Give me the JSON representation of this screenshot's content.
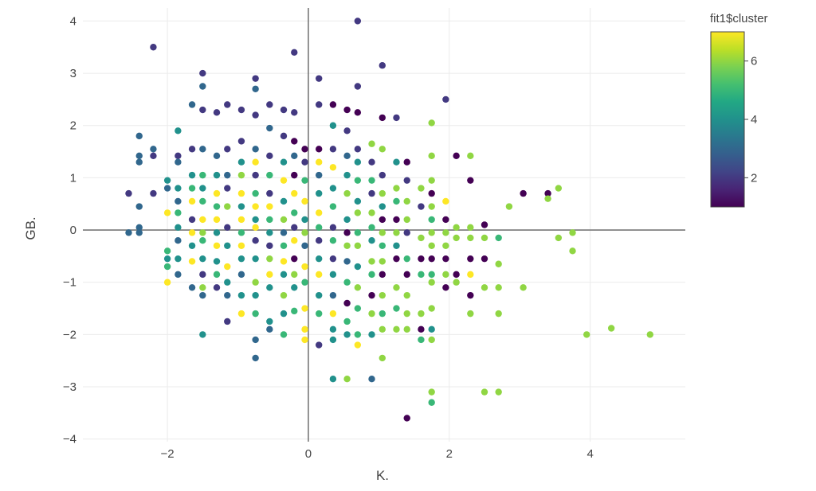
{
  "chart_data": {
    "type": "scatter",
    "xlabel": "K.",
    "ylabel": "GB.",
    "xlim": [
      -3.2,
      5.35
    ],
    "ylim": [
      -4.05,
      4.25
    ],
    "x_ticks": [
      -2,
      0,
      2,
      4
    ],
    "x_tick_labels": [
      "−2",
      "0",
      "2",
      "4"
    ],
    "y_ticks": [
      -4,
      -3,
      -2,
      -1,
      0,
      1,
      2,
      3,
      4
    ],
    "y_tick_labels": [
      "−4",
      "−3",
      "−2",
      "−1",
      "0",
      "1",
      "2",
      "3",
      "4"
    ],
    "grid": true,
    "zero_lines": true,
    "color_variable": "fit1$cluster",
    "colorscale": "viridis",
    "colorbar": {
      "title": "fit1$cluster",
      "range": [
        1,
        7
      ],
      "ticks": [
        2,
        4,
        6
      ],
      "tick_labels": [
        "2",
        "4",
        "6"
      ],
      "placement": "right"
    },
    "points": [
      [
        -2.55,
        0.7,
        2
      ],
      [
        -2.55,
        -0.05,
        3
      ],
      [
        -2.4,
        1.8,
        3
      ],
      [
        -2.4,
        1.42,
        3
      ],
      [
        -2.4,
        1.3,
        3
      ],
      [
        -2.4,
        0.45,
        3
      ],
      [
        -2.4,
        0.05,
        3
      ],
      [
        -2.4,
        -0.05,
        3
      ],
      [
        -2.2,
        3.5,
        2
      ],
      [
        -2.2,
        1.55,
        3
      ],
      [
        -2.2,
        1.42,
        2
      ],
      [
        -2.2,
        0.7,
        2
      ],
      [
        -2.0,
        0.95,
        4
      ],
      [
        -2.0,
        0.8,
        3
      ],
      [
        -2.0,
        0.33,
        7
      ],
      [
        -2.0,
        -0.4,
        5
      ],
      [
        -2.0,
        -0.55,
        4
      ],
      [
        -2.0,
        -0.7,
        5
      ],
      [
        -2.0,
        -1.0,
        7
      ],
      [
        -1.85,
        1.9,
        4
      ],
      [
        -1.85,
        1.42,
        2
      ],
      [
        -1.85,
        1.3,
        3
      ],
      [
        -1.85,
        0.8,
        4
      ],
      [
        -1.85,
        0.55,
        3
      ],
      [
        -1.85,
        0.33,
        5
      ],
      [
        -1.85,
        0.05,
        4
      ],
      [
        -1.85,
        -0.2,
        3
      ],
      [
        -1.85,
        -0.55,
        4
      ],
      [
        -1.85,
        -0.85,
        3
      ],
      [
        -1.65,
        2.4,
        3
      ],
      [
        -1.65,
        1.55,
        2
      ],
      [
        -1.65,
        1.05,
        4
      ],
      [
        -1.65,
        0.8,
        5
      ],
      [
        -1.65,
        0.55,
        7
      ],
      [
        -1.65,
        0.2,
        2
      ],
      [
        -1.65,
        -0.05,
        7
      ],
      [
        -1.65,
        -0.3,
        4
      ],
      [
        -1.65,
        -0.6,
        7
      ],
      [
        -1.65,
        -1.1,
        3
      ],
      [
        -1.5,
        3.0,
        2
      ],
      [
        -1.5,
        2.75,
        3
      ],
      [
        -1.5,
        2.3,
        2
      ],
      [
        -1.5,
        1.55,
        3
      ],
      [
        -1.5,
        1.05,
        5
      ],
      [
        -1.5,
        0.8,
        4
      ],
      [
        -1.5,
        0.55,
        5
      ],
      [
        -1.5,
        0.2,
        7
      ],
      [
        -1.5,
        -0.05,
        6
      ],
      [
        -1.5,
        -0.2,
        5
      ],
      [
        -1.5,
        -0.55,
        4
      ],
      [
        -1.5,
        -0.85,
        2
      ],
      [
        -1.5,
        -1.1,
        6
      ],
      [
        -1.5,
        -1.25,
        3
      ],
      [
        -1.5,
        -2.0,
        4
      ],
      [
        -1.3,
        2.25,
        2
      ],
      [
        -1.3,
        1.42,
        3
      ],
      [
        -1.3,
        1.05,
        4
      ],
      [
        -1.3,
        0.7,
        7
      ],
      [
        -1.3,
        0.45,
        5
      ],
      [
        -1.3,
        0.2,
        7
      ],
      [
        -1.3,
        -0.05,
        4
      ],
      [
        -1.3,
        -0.3,
        7
      ],
      [
        -1.3,
        -0.6,
        4
      ],
      [
        -1.3,
        -0.85,
        5
      ],
      [
        -1.3,
        -1.1,
        2
      ],
      [
        -1.15,
        2.4,
        2
      ],
      [
        -1.15,
        1.55,
        2
      ],
      [
        -1.15,
        1.05,
        3
      ],
      [
        -1.15,
        0.8,
        2
      ],
      [
        -1.15,
        0.45,
        6
      ],
      [
        -1.15,
        0.05,
        2
      ],
      [
        -1.15,
        -0.3,
        4
      ],
      [
        -1.15,
        -0.7,
        7
      ],
      [
        -1.15,
        -1.0,
        4
      ],
      [
        -1.15,
        -1.25,
        3
      ],
      [
        -1.15,
        -1.75,
        2
      ],
      [
        -0.95,
        2.3,
        2
      ],
      [
        -0.95,
        1.7,
        2
      ],
      [
        -0.95,
        1.3,
        4
      ],
      [
        -0.95,
        1.05,
        6
      ],
      [
        -0.95,
        0.7,
        7
      ],
      [
        -0.95,
        0.45,
        4
      ],
      [
        -0.95,
        0.2,
        7
      ],
      [
        -0.95,
        -0.05,
        5
      ],
      [
        -0.95,
        -0.3,
        7
      ],
      [
        -0.95,
        -0.55,
        4
      ],
      [
        -0.95,
        -0.85,
        3
      ],
      [
        -0.95,
        -1.25,
        4
      ],
      [
        -0.95,
        -1.6,
        7
      ],
      [
        -0.75,
        2.9,
        2
      ],
      [
        -0.75,
        2.7,
        3
      ],
      [
        -0.75,
        2.2,
        2
      ],
      [
        -0.75,
        1.55,
        3
      ],
      [
        -0.75,
        1.3,
        7
      ],
      [
        -0.75,
        1.05,
        2
      ],
      [
        -0.75,
        0.7,
        5
      ],
      [
        -0.75,
        0.45,
        7
      ],
      [
        -0.75,
        0.2,
        4
      ],
      [
        -0.75,
        0.05,
        7
      ],
      [
        -0.75,
        -0.2,
        2
      ],
      [
        -0.75,
        -0.55,
        4
      ],
      [
        -0.75,
        -1.0,
        6
      ],
      [
        -0.75,
        -1.25,
        4
      ],
      [
        -0.75,
        -1.6,
        5
      ],
      [
        -0.75,
        -2.1,
        3
      ],
      [
        -0.75,
        -2.45,
        3
      ],
      [
        -0.55,
        2.4,
        2
      ],
      [
        -0.55,
        1.95,
        3
      ],
      [
        -0.55,
        1.42,
        2
      ],
      [
        -0.55,
        1.05,
        5
      ],
      [
        -0.55,
        0.7,
        2
      ],
      [
        -0.55,
        0.45,
        7
      ],
      [
        -0.55,
        0.2,
        5
      ],
      [
        -0.55,
        -0.05,
        4
      ],
      [
        -0.55,
        -0.3,
        2
      ],
      [
        -0.55,
        -0.55,
        6
      ],
      [
        -0.55,
        -0.85,
        7
      ],
      [
        -0.55,
        -1.1,
        4
      ],
      [
        -0.55,
        -1.75,
        4
      ],
      [
        -0.55,
        -1.9,
        3
      ],
      [
        -0.35,
        2.3,
        2
      ],
      [
        -0.35,
        1.8,
        2
      ],
      [
        -0.35,
        1.3,
        4
      ],
      [
        -0.35,
        0.95,
        7
      ],
      [
        -0.35,
        0.55,
        4
      ],
      [
        -0.35,
        0.2,
        6
      ],
      [
        -0.35,
        -0.05,
        3
      ],
      [
        -0.35,
        -0.3,
        5
      ],
      [
        -0.35,
        -0.6,
        7
      ],
      [
        -0.35,
        -0.85,
        4
      ],
      [
        -0.35,
        -1.25,
        6
      ],
      [
        -0.35,
        -1.6,
        4
      ],
      [
        -0.35,
        -2.0,
        5
      ],
      [
        -0.2,
        2.25,
        2
      ],
      [
        -0.2,
        1.7,
        1
      ],
      [
        -0.2,
        1.42,
        3
      ],
      [
        -0.2,
        1.05,
        1
      ],
      [
        -0.2,
        0.7,
        7
      ],
      [
        -0.2,
        0.33,
        5
      ],
      [
        -0.2,
        0.05,
        2
      ],
      [
        -0.2,
        -0.2,
        7
      ],
      [
        -0.2,
        -0.55,
        1
      ],
      [
        -0.2,
        -0.85,
        6
      ],
      [
        -0.2,
        -1.1,
        4
      ],
      [
        -0.2,
        -1.55,
        5
      ],
      [
        -0.2,
        3.4,
        2
      ],
      [
        -0.05,
        1.55,
        1
      ],
      [
        -0.05,
        1.3,
        2
      ],
      [
        -0.05,
        0.95,
        5
      ],
      [
        -0.05,
        0.55,
        7
      ],
      [
        -0.05,
        0.2,
        4
      ],
      [
        -0.05,
        -0.05,
        6
      ],
      [
        -0.05,
        -0.3,
        3
      ],
      [
        -0.05,
        -0.7,
        7
      ],
      [
        -0.05,
        -1.0,
        5
      ],
      [
        -0.05,
        -1.5,
        7
      ],
      [
        -0.05,
        -1.9,
        7
      ],
      [
        -0.05,
        -2.1,
        7
      ],
      [
        0.15,
        2.9,
        2
      ],
      [
        0.15,
        2.4,
        2
      ],
      [
        0.15,
        1.55,
        1
      ],
      [
        0.15,
        1.3,
        7
      ],
      [
        0.15,
        1.05,
        3
      ],
      [
        0.15,
        0.7,
        4
      ],
      [
        0.15,
        0.33,
        7
      ],
      [
        0.15,
        0.05,
        5
      ],
      [
        0.15,
        -0.2,
        2
      ],
      [
        0.15,
        -0.55,
        4
      ],
      [
        0.15,
        -0.85,
        7
      ],
      [
        0.15,
        -1.25,
        4
      ],
      [
        0.15,
        -1.6,
        5
      ],
      [
        0.15,
        -2.2,
        2
      ],
      [
        0.35,
        2.4,
        1
      ],
      [
        0.35,
        2.0,
        4
      ],
      [
        0.35,
        1.55,
        2
      ],
      [
        0.35,
        1.2,
        7
      ],
      [
        0.35,
        0.8,
        4
      ],
      [
        0.35,
        0.45,
        5
      ],
      [
        0.35,
        0.05,
        2
      ],
      [
        0.35,
        -0.2,
        5
      ],
      [
        0.35,
        -0.55,
        2
      ],
      [
        0.35,
        -0.85,
        4
      ],
      [
        0.35,
        -1.25,
        3
      ],
      [
        0.35,
        -1.6,
        7
      ],
      [
        0.35,
        -1.9,
        4
      ],
      [
        0.35,
        -2.1,
        4
      ],
      [
        0.35,
        -2.85,
        4
      ],
      [
        0.55,
        2.3,
        1
      ],
      [
        0.55,
        1.9,
        2
      ],
      [
        0.55,
        1.42,
        3
      ],
      [
        0.55,
        1.05,
        4
      ],
      [
        0.55,
        0.7,
        6
      ],
      [
        0.55,
        0.2,
        4
      ],
      [
        0.55,
        -0.05,
        1
      ],
      [
        0.55,
        -0.3,
        6
      ],
      [
        0.55,
        -0.6,
        3
      ],
      [
        0.55,
        -1.0,
        5
      ],
      [
        0.55,
        -1.4,
        1
      ],
      [
        0.55,
        -1.75,
        5
      ],
      [
        0.55,
        -2.0,
        4
      ],
      [
        0.55,
        -2.85,
        6
      ],
      [
        0.7,
        4.0,
        2
      ],
      [
        0.7,
        2.75,
        2
      ],
      [
        0.7,
        2.25,
        1
      ],
      [
        0.7,
        1.55,
        2
      ],
      [
        0.7,
        1.3,
        4
      ],
      [
        0.7,
        0.95,
        5
      ],
      [
        0.7,
        0.55,
        4
      ],
      [
        0.7,
        0.33,
        6
      ],
      [
        0.7,
        -0.05,
        5
      ],
      [
        0.7,
        -0.3,
        6
      ],
      [
        0.7,
        -0.7,
        4
      ],
      [
        0.7,
        -1.1,
        6
      ],
      [
        0.7,
        -1.5,
        5
      ],
      [
        0.7,
        -2.0,
        5
      ],
      [
        0.7,
        -2.2,
        7
      ],
      [
        0.9,
        1.65,
        6
      ],
      [
        0.9,
        1.3,
        2
      ],
      [
        0.9,
        0.95,
        5
      ],
      [
        0.9,
        0.7,
        2
      ],
      [
        0.9,
        0.33,
        6
      ],
      [
        0.9,
        0.05,
        5
      ],
      [
        0.9,
        -0.2,
        4
      ],
      [
        0.9,
        -0.6,
        6
      ],
      [
        0.9,
        -0.85,
        5
      ],
      [
        0.9,
        -1.25,
        1
      ],
      [
        0.9,
        -1.6,
        6
      ],
      [
        0.9,
        -2.0,
        4
      ],
      [
        0.9,
        -2.85,
        3
      ],
      [
        1.05,
        3.15,
        2
      ],
      [
        1.05,
        2.15,
        1
      ],
      [
        1.05,
        1.55,
        6
      ],
      [
        1.05,
        1.05,
        2
      ],
      [
        1.05,
        0.7,
        6
      ],
      [
        1.05,
        0.45,
        4
      ],
      [
        1.05,
        0.2,
        1
      ],
      [
        1.05,
        -0.05,
        6
      ],
      [
        1.05,
        -0.3,
        5
      ],
      [
        1.05,
        -0.6,
        6
      ],
      [
        1.05,
        -0.85,
        1
      ],
      [
        1.05,
        -1.25,
        6
      ],
      [
        1.05,
        -1.6,
        5
      ],
      [
        1.05,
        -1.9,
        6
      ],
      [
        1.05,
        -2.45,
        6
      ],
      [
        1.25,
        2.15,
        2
      ],
      [
        1.25,
        1.3,
        4
      ],
      [
        1.25,
        0.8,
        6
      ],
      [
        1.25,
        0.55,
        5
      ],
      [
        1.25,
        0.2,
        1
      ],
      [
        1.25,
        -0.05,
        6
      ],
      [
        1.25,
        -0.3,
        4
      ],
      [
        1.25,
        -0.55,
        1
      ],
      [
        1.25,
        -1.1,
        6
      ],
      [
        1.25,
        -1.5,
        5
      ],
      [
        1.25,
        -1.9,
        6
      ],
      [
        1.4,
        1.3,
        1
      ],
      [
        1.4,
        0.95,
        2
      ],
      [
        1.4,
        0.55,
        6
      ],
      [
        1.4,
        0.2,
        6
      ],
      [
        1.4,
        -0.05,
        2
      ],
      [
        1.4,
        -0.55,
        5
      ],
      [
        1.4,
        -0.85,
        1
      ],
      [
        1.4,
        -1.25,
        6
      ],
      [
        1.4,
        -1.6,
        6
      ],
      [
        1.4,
        -1.9,
        6
      ],
      [
        1.4,
        -3.6,
        1
      ],
      [
        1.6,
        0.8,
        6
      ],
      [
        1.6,
        0.45,
        2
      ],
      [
        1.6,
        -0.15,
        6
      ],
      [
        1.6,
        -0.55,
        1
      ],
      [
        1.6,
        -0.85,
        5
      ],
      [
        1.6,
        -1.6,
        6
      ],
      [
        1.6,
        -1.9,
        1
      ],
      [
        1.6,
        -2.1,
        5
      ],
      [
        1.75,
        2.05,
        6
      ],
      [
        1.75,
        1.42,
        6
      ],
      [
        1.75,
        0.95,
        6
      ],
      [
        1.75,
        0.7,
        1
      ],
      [
        1.75,
        0.45,
        6
      ],
      [
        1.75,
        0.2,
        5
      ],
      [
        1.75,
        -0.05,
        6
      ],
      [
        1.75,
        -0.3,
        6
      ],
      [
        1.75,
        -0.55,
        1
      ],
      [
        1.75,
        -0.85,
        5
      ],
      [
        1.75,
        -1.0,
        6
      ],
      [
        1.75,
        -1.5,
        6
      ],
      [
        1.75,
        -1.9,
        4
      ],
      [
        1.75,
        -2.1,
        6
      ],
      [
        1.75,
        -3.1,
        6
      ],
      [
        1.75,
        -3.3,
        5
      ],
      [
        1.95,
        2.5,
        2
      ],
      [
        1.95,
        0.55,
        7
      ],
      [
        1.95,
        0.2,
        1
      ],
      [
        1.95,
        -0.05,
        6
      ],
      [
        1.95,
        -0.3,
        6
      ],
      [
        1.95,
        -0.55,
        1
      ],
      [
        1.95,
        -0.85,
        6
      ],
      [
        1.95,
        -1.1,
        1
      ],
      [
        2.1,
        1.42,
        1
      ],
      [
        2.1,
        0.05,
        6
      ],
      [
        2.1,
        -0.15,
        6
      ],
      [
        2.1,
        -0.85,
        1
      ],
      [
        2.1,
        -1.0,
        6
      ],
      [
        2.3,
        1.42,
        6
      ],
      [
        2.3,
        0.95,
        1
      ],
      [
        2.3,
        -0.15,
        6
      ],
      [
        2.3,
        -0.55,
        1
      ],
      [
        2.3,
        -0.85,
        7
      ],
      [
        2.3,
        -1.25,
        1
      ],
      [
        2.3,
        -1.6,
        6
      ],
      [
        2.3,
        0.05,
        6
      ],
      [
        2.5,
        0.1,
        1
      ],
      [
        2.5,
        -0.15,
        6
      ],
      [
        2.5,
        -0.55,
        1
      ],
      [
        2.5,
        -1.1,
        6
      ],
      [
        2.5,
        -3.1,
        6
      ],
      [
        2.7,
        -0.15,
        5
      ],
      [
        2.7,
        -0.65,
        6
      ],
      [
        2.7,
        -1.1,
        6
      ],
      [
        2.7,
        -1.6,
        6
      ],
      [
        2.7,
        -3.1,
        6
      ],
      [
        2.85,
        0.45,
        6
      ],
      [
        3.05,
        0.7,
        1
      ],
      [
        3.05,
        -1.1,
        6
      ],
      [
        3.4,
        0.7,
        1
      ],
      [
        3.4,
        0.6,
        6
      ],
      [
        3.55,
        0.8,
        6
      ],
      [
        3.55,
        -0.15,
        6
      ],
      [
        3.75,
        -0.05,
        6
      ],
      [
        3.75,
        -0.4,
        6
      ],
      [
        3.95,
        -2.0,
        6
      ],
      [
        4.3,
        -1.88,
        6
      ],
      [
        4.85,
        -2.0,
        6
      ]
    ]
  }
}
